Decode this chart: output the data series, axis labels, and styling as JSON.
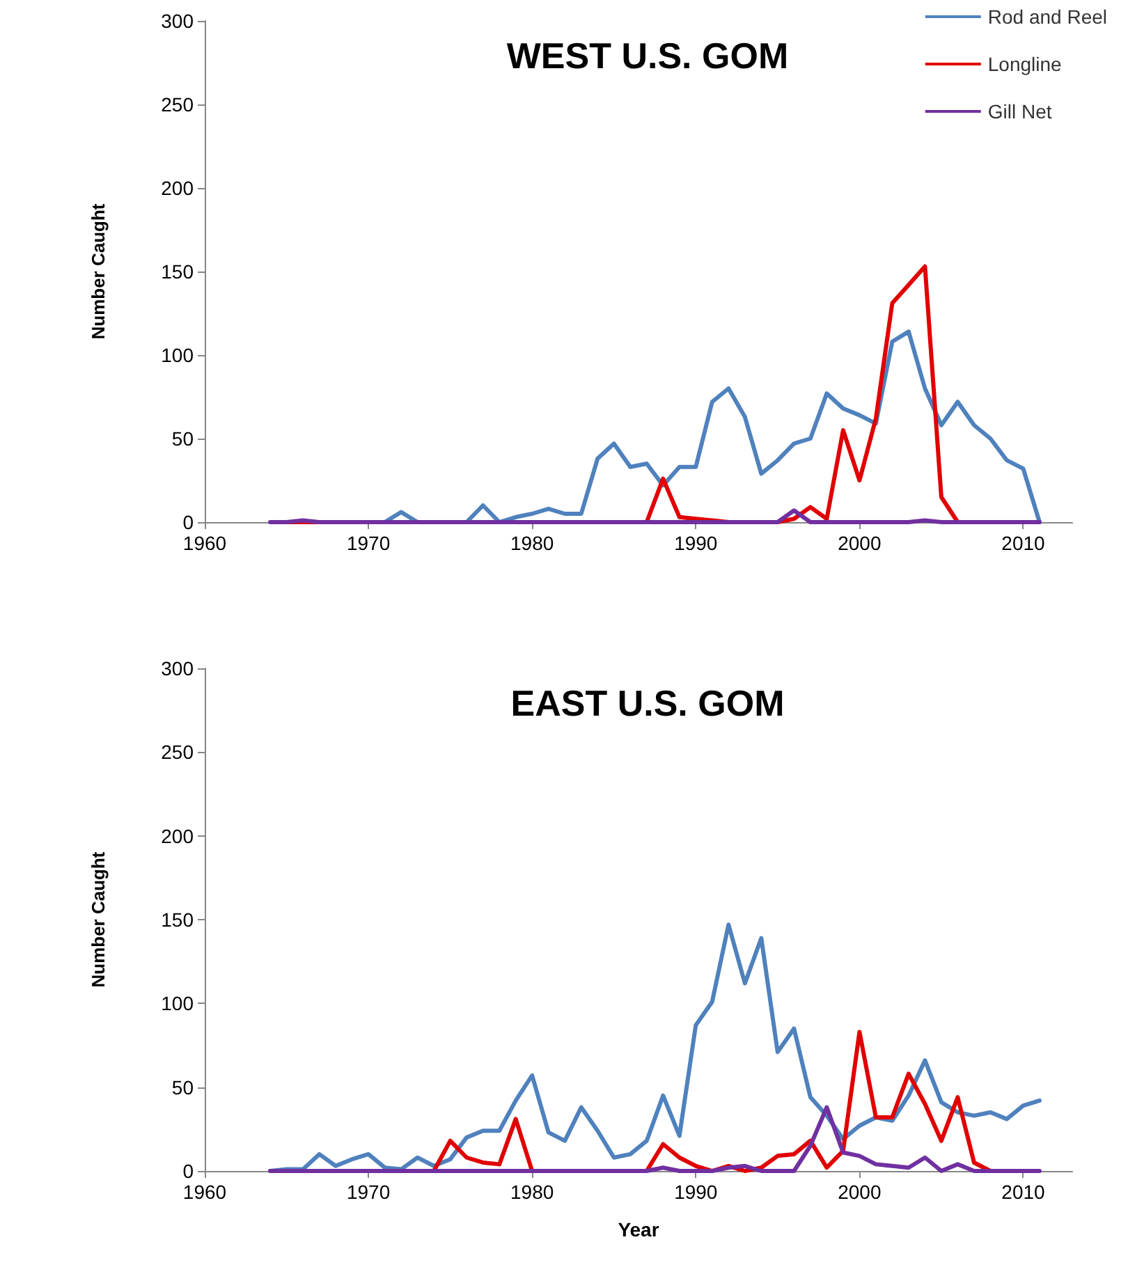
{
  "chart_data": [
    {
      "type": "line",
      "title": "WEST U.S. GOM",
      "ylabel": "Number Caught",
      "x": [
        1964,
        1965,
        1966,
        1967,
        1968,
        1969,
        1970,
        1971,
        1972,
        1973,
        1974,
        1975,
        1976,
        1977,
        1978,
        1979,
        1980,
        1981,
        1982,
        1983,
        1984,
        1985,
        1986,
        1987,
        1988,
        1989,
        1990,
        1991,
        1992,
        1993,
        1994,
        1995,
        1996,
        1997,
        1998,
        1999,
        2000,
        2001,
        2002,
        2003,
        2004,
        2005,
        2006,
        2007,
        2008,
        2009,
        2010,
        2011
      ],
      "xlim": [
        1960,
        2013
      ],
      "xticks": [
        1960,
        1970,
        1980,
        1990,
        2000,
        2010
      ],
      "ylim": [
        0,
        300
      ],
      "yticks": [
        0,
        50,
        100,
        150,
        200,
        250,
        300
      ],
      "grid": false,
      "legend": "top right",
      "marker": "none",
      "line_style": "solid",
      "series": [
        {
          "name": "Rod and Reel",
          "color": "#4f81bd",
          "values": [
            null,
            null,
            null,
            null,
            null,
            null,
            0,
            0,
            6,
            0,
            0,
            0,
            0,
            10,
            0,
            3,
            5,
            8,
            5,
            5,
            38,
            47,
            33,
            35,
            22,
            33,
            33,
            72,
            80,
            63,
            29,
            37,
            47,
            50,
            77,
            68,
            64,
            59,
            108,
            114,
            80,
            58,
            72,
            58,
            50,
            37,
            32,
            0
          ]
        },
        {
          "name": "Longline",
          "color": "#e00000",
          "values": [
            null,
            0,
            0,
            0,
            null,
            null,
            null,
            null,
            null,
            null,
            null,
            null,
            null,
            null,
            null,
            null,
            null,
            null,
            null,
            null,
            null,
            null,
            null,
            0,
            26,
            3,
            2,
            1,
            0,
            null,
            null,
            0,
            2,
            9,
            2,
            55,
            25,
            62,
            131,
            142,
            153,
            15,
            0,
            null,
            null,
            null,
            null,
            null
          ]
        },
        {
          "name": "Gill Net",
          "color": "#7030a0",
          "values": [
            0,
            0,
            1,
            0,
            0,
            0,
            0,
            0,
            0,
            0,
            0,
            0,
            0,
            0,
            0,
            0,
            0,
            0,
            0,
            0,
            0,
            0,
            0,
            0,
            0,
            0,
            0,
            0,
            0,
            0,
            0,
            0,
            7,
            0,
            0,
            0,
            0,
            0,
            0,
            0,
            1,
            0,
            0,
            0,
            0,
            0,
            0,
            0
          ]
        }
      ]
    },
    {
      "type": "line",
      "title": "EAST U.S. GOM",
      "xlabel": "Year",
      "ylabel": "Number Caught",
      "x": [
        1964,
        1965,
        1966,
        1967,
        1968,
        1969,
        1970,
        1971,
        1972,
        1973,
        1974,
        1975,
        1976,
        1977,
        1978,
        1979,
        1980,
        1981,
        1982,
        1983,
        1984,
        1985,
        1986,
        1987,
        1988,
        1989,
        1990,
        1991,
        1992,
        1993,
        1994,
        1995,
        1996,
        1997,
        1998,
        1999,
        2000,
        2001,
        2002,
        2003,
        2004,
        2005,
        2006,
        2007,
        2008,
        2009,
        2010,
        2011
      ],
      "xlim": [
        1960,
        2013
      ],
      "xticks": [
        1960,
        1970,
        1980,
        1990,
        2000,
        2010
      ],
      "ylim": [
        0,
        300
      ],
      "yticks": [
        0,
        50,
        100,
        150,
        200,
        250,
        300
      ],
      "grid": false,
      "marker": "none",
      "line_style": "solid",
      "series": [
        {
          "color": "#4f81bd",
          "values": [
            0,
            1,
            1,
            10,
            3,
            7,
            10,
            2,
            1,
            8,
            3,
            7,
            20,
            24,
            24,
            42,
            57,
            23,
            18,
            38,
            24,
            8,
            10,
            18,
            45,
            21,
            87,
            101,
            147,
            112,
            139,
            71,
            85,
            44,
            33,
            19,
            27,
            32,
            30,
            45,
            66,
            41,
            35,
            33,
            35,
            31,
            39,
            42
          ]
        },
        {
          "color": "#e00000",
          "values": [
            null,
            null,
            null,
            null,
            null,
            null,
            null,
            null,
            null,
            0,
            0,
            18,
            8,
            5,
            4,
            31,
            0,
            0,
            0,
            0,
            0,
            0,
            0,
            0,
            16,
            8,
            3,
            0,
            3,
            0,
            2,
            9,
            10,
            18,
            2,
            12,
            83,
            32,
            32,
            58,
            40,
            18,
            44,
            5,
            0,
            0,
            null,
            null
          ]
        },
        {
          "color": "#7030a0",
          "values": [
            0,
            0,
            0,
            0,
            0,
            0,
            0,
            0,
            0,
            0,
            0,
            0,
            0,
            0,
            0,
            0,
            0,
            0,
            0,
            0,
            0,
            0,
            0,
            0,
            2,
            0,
            0,
            0,
            2,
            3,
            0,
            0,
            0,
            15,
            38,
            11,
            9,
            4,
            3,
            2,
            8,
            0,
            4,
            0,
            0,
            0,
            0,
            0
          ]
        }
      ]
    }
  ]
}
